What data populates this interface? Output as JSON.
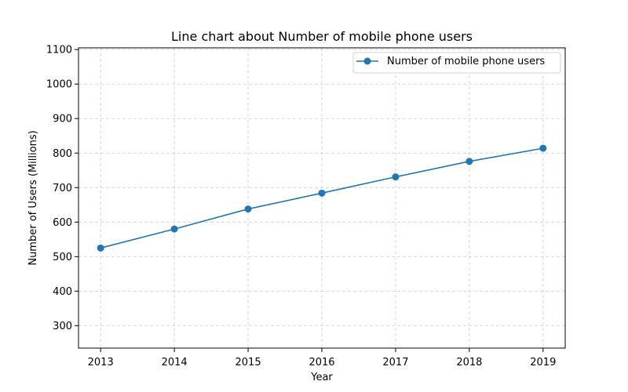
{
  "chart_data": {
    "type": "line",
    "title": "Line chart about Number of mobile phone users",
    "xlabel": "Year",
    "ylabel": "Number of Users (Millions)",
    "x": [
      2013,
      2014,
      2015,
      2016,
      2017,
      2018,
      2019
    ],
    "series": [
      {
        "name": "Number of mobile phone users",
        "values": [
          525,
          580,
          638,
          684,
          731,
          776,
          814
        ],
        "color": "#1f77b4"
      }
    ],
    "xlim": [
      2012.7,
      2019.3
    ],
    "ylim": [
      235,
      1105
    ],
    "xticks": [
      "2013",
      "2014",
      "2015",
      "2016",
      "2017",
      "2018",
      "2019"
    ],
    "yticks": [
      "300",
      "400",
      "500",
      "600",
      "700",
      "800",
      "900",
      "1000",
      "1100"
    ],
    "grid": true,
    "grid_style": "dashed",
    "legend_position": "top-right"
  }
}
